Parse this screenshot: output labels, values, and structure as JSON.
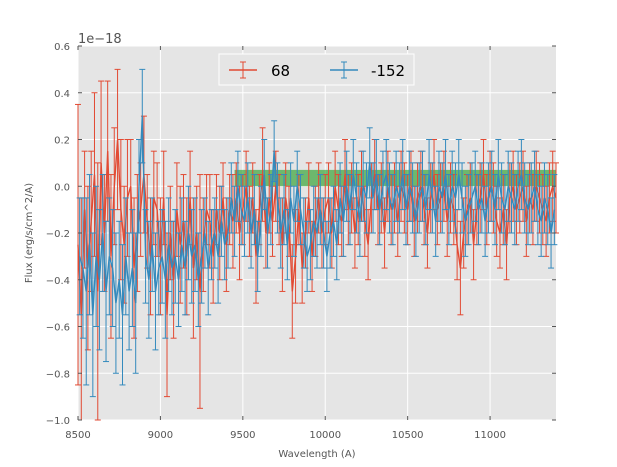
{
  "chart_data": {
    "type": "line",
    "xlabel": "Wavelength (A)",
    "ylabel": "Flux (erg/s/cm^2/A)",
    "y_offset_label": "1e−18",
    "xlim": [
      8500,
      11400
    ],
    "ylim": [
      -1.0,
      0.6
    ],
    "x_ticks": [
      8500,
      9000,
      9500,
      10000,
      10500,
      11000
    ],
    "x_tick_labels": [
      "8500",
      "9000",
      "9500",
      "10000",
      "10500",
      "11000"
    ],
    "y_ticks": [
      -1.0,
      -0.8,
      -0.6,
      -0.4,
      -0.2,
      0.0,
      0.2,
      0.4,
      0.6
    ],
    "y_tick_labels": [
      "−1.0",
      "−0.8",
      "−0.6",
      "−0.4",
      "−0.2",
      "0.0",
      "0.2",
      "0.4",
      "0.6"
    ],
    "grid": true,
    "legend_position": "top-center",
    "band": {
      "x_range": [
        9450,
        11400
      ],
      "y_range": [
        0.0,
        0.07
      ],
      "color": "#2ca02c"
    },
    "series": [
      {
        "name": "68",
        "color": "#e24a33",
        "x": [
          8500,
          8520,
          8540,
          8560,
          8580,
          8600,
          8620,
          8640,
          8660,
          8680,
          8700,
          8720,
          8740,
          8760,
          8780,
          8800,
          8820,
          8840,
          8860,
          8880,
          8900,
          8920,
          8940,
          8960,
          8980,
          9000,
          9020,
          9040,
          9060,
          9080,
          9100,
          9120,
          9140,
          9160,
          9180,
          9200,
          9220,
          9240,
          9260,
          9280,
          9300,
          9320,
          9340,
          9360,
          9380,
          9400,
          9420,
          9440,
          9460,
          9480,
          9500,
          9520,
          9540,
          9560,
          9580,
          9600,
          9620,
          9640,
          9660,
          9680,
          9700,
          9720,
          9740,
          9760,
          9780,
          9800,
          9820,
          9840,
          9860,
          9880,
          9900,
          9920,
          9940,
          9960,
          9980,
          10000,
          10020,
          10040,
          10060,
          10080,
          10100,
          10120,
          10140,
          10160,
          10180,
          10200,
          10220,
          10240,
          10260,
          10280,
          10300,
          10320,
          10340,
          10360,
          10380,
          10400,
          10420,
          10440,
          10460,
          10480,
          10500,
          10520,
          10540,
          10560,
          10580,
          10600,
          10620,
          10640,
          10660,
          10680,
          10700,
          10720,
          10740,
          10760,
          10780,
          10800,
          10820,
          10840,
          10860,
          10880,
          10900,
          10920,
          10940,
          10960,
          10980,
          11000,
          11020,
          11040,
          11060,
          11080,
          11100,
          11120,
          11140,
          11160,
          11180,
          11200,
          11220,
          11240,
          11260,
          11280,
          11300,
          11320,
          11340,
          11360,
          11380,
          11400
        ],
        "y": [
          -0.25,
          -0.55,
          -0.1,
          -0.35,
          -0.15,
          0.05,
          -0.45,
          0.1,
          -0.2,
          0.15,
          -0.3,
          0.0,
          0.2,
          -0.1,
          -0.25,
          -0.05,
          0.0,
          -0.35,
          -0.2,
          -0.1,
          0.05,
          -0.15,
          -0.3,
          -0.05,
          -0.1,
          -0.3,
          -0.05,
          -0.55,
          -0.2,
          -0.4,
          -0.1,
          -0.25,
          -0.15,
          -0.3,
          -0.05,
          -0.35,
          -0.2,
          -0.45,
          -0.25,
          -0.1,
          -0.15,
          -0.3,
          -0.1,
          -0.2,
          -0.05,
          -0.25,
          -0.1,
          -0.15,
          -0.05,
          -0.2,
          -0.1,
          0.0,
          -0.15,
          -0.05,
          -0.3,
          -0.1,
          0.05,
          -0.2,
          -0.05,
          -0.15,
          0.0,
          -0.1,
          -0.25,
          -0.05,
          -0.15,
          -0.45,
          -0.3,
          -0.1,
          -0.35,
          -0.2,
          -0.05,
          -0.3,
          -0.15,
          -0.05,
          -0.2,
          -0.1,
          -0.05,
          -0.2,
          0.0,
          -0.1,
          -0.15,
          0.05,
          -0.1,
          -0.05,
          -0.2,
          -0.1,
          0.0,
          -0.15,
          -0.25,
          -0.05,
          0.05,
          -0.1,
          -0.05,
          -0.2,
          0.0,
          -0.1,
          -0.05,
          -0.15,
          0.0,
          -0.05,
          -0.1,
          0.0,
          -0.15,
          -0.05,
          0.0,
          -0.1,
          -0.2,
          -0.05,
          0.05,
          -0.1,
          -0.05,
          0.0,
          -0.15,
          -0.05,
          -0.1,
          -0.25,
          -0.35,
          -0.2,
          -0.1,
          -0.05,
          -0.25,
          -0.1,
          -0.05,
          0.05,
          -0.1,
          0.0,
          -0.05,
          -0.15,
          -0.2,
          -0.1,
          -0.25,
          -0.05,
          0.0,
          -0.1,
          -0.05,
          0.0,
          -0.15,
          -0.05,
          -0.1,
          0.0,
          -0.05,
          -0.1,
          -0.15,
          -0.05,
          0.0,
          -0.05
        ],
        "err": [
          0.6,
          0.5,
          0.25,
          0.35,
          0.3,
          0.35,
          0.55,
          0.35,
          0.25,
          0.3,
          0.35,
          0.25,
          0.3,
          0.3,
          0.25,
          0.25,
          0.2,
          0.3,
          0.25,
          0.2,
          0.25,
          0.2,
          0.25,
          0.2,
          0.2,
          0.25,
          0.2,
          0.35,
          0.2,
          0.25,
          0.2,
          0.25,
          0.2,
          0.25,
          0.2,
          0.3,
          0.2,
          0.5,
          0.2,
          0.15,
          0.2,
          0.2,
          0.15,
          0.2,
          0.15,
          0.2,
          0.15,
          0.2,
          0.15,
          0.2,
          0.15,
          0.15,
          0.15,
          0.15,
          0.2,
          0.15,
          0.2,
          0.15,
          0.15,
          0.15,
          0.15,
          0.15,
          0.2,
          0.15,
          0.15,
          0.2,
          0.2,
          0.15,
          0.15,
          0.15,
          0.15,
          0.15,
          0.15,
          0.15,
          0.15,
          0.15,
          0.15,
          0.15,
          0.15,
          0.15,
          0.15,
          0.15,
          0.15,
          0.15,
          0.15,
          0.15,
          0.15,
          0.15,
          0.15,
          0.15,
          0.15,
          0.15,
          0.15,
          0.15,
          0.15,
          0.15,
          0.15,
          0.15,
          0.15,
          0.15,
          0.15,
          0.15,
          0.15,
          0.15,
          0.15,
          0.15,
          0.15,
          0.15,
          0.15,
          0.15,
          0.15,
          0.15,
          0.15,
          0.15,
          0.15,
          0.15,
          0.2,
          0.15,
          0.15,
          0.15,
          0.15,
          0.15,
          0.15,
          0.15,
          0.15,
          0.15,
          0.15,
          0.15,
          0.15,
          0.15,
          0.15,
          0.15,
          0.15,
          0.15,
          0.15,
          0.15,
          0.15,
          0.15,
          0.15,
          0.15,
          0.15,
          0.15,
          0.15,
          0.15,
          0.15,
          0.15
        ]
      },
      {
        "name": "-152",
        "color": "#348abd",
        "x": [
          8510,
          8530,
          8550,
          8570,
          8590,
          8610,
          8630,
          8650,
          8670,
          8690,
          8710,
          8730,
          8750,
          8770,
          8790,
          8810,
          8830,
          8850,
          8870,
          8890,
          8910,
          8930,
          8950,
          8970,
          8990,
          9010,
          9030,
          9050,
          9070,
          9090,
          9110,
          9130,
          9150,
          9170,
          9190,
          9210,
          9230,
          9250,
          9270,
          9290,
          9310,
          9330,
          9350,
          9370,
          9390,
          9410,
          9430,
          9450,
          9470,
          9490,
          9510,
          9530,
          9550,
          9570,
          9590,
          9610,
          9630,
          9650,
          9670,
          9690,
          9710,
          9730,
          9750,
          9770,
          9790,
          9810,
          9830,
          9850,
          9870,
          9890,
          9910,
          9930,
          9950,
          9970,
          9990,
          10010,
          10030,
          10050,
          10070,
          10090,
          10110,
          10130,
          10150,
          10170,
          10190,
          10210,
          10230,
          10250,
          10270,
          10290,
          10310,
          10330,
          10350,
          10370,
          10390,
          10410,
          10430,
          10450,
          10470,
          10490,
          10510,
          10530,
          10550,
          10570,
          10590,
          10610,
          10630,
          10650,
          10670,
          10690,
          10710,
          10730,
          10750,
          10770,
          10790,
          10810,
          10830,
          10850,
          10870,
          10890,
          10910,
          10930,
          10950,
          10970,
          10990,
          11010,
          11030,
          11050,
          11070,
          11090,
          11110,
          11130,
          11150,
          11170,
          11190,
          11210,
          11230,
          11250,
          11270,
          11290,
          11310,
          11330,
          11350,
          11370,
          11390
        ],
        "y": [
          -0.3,
          -0.35,
          -0.45,
          -0.25,
          -0.55,
          -0.3,
          -0.4,
          -0.2,
          -0.45,
          -0.3,
          -0.35,
          -0.5,
          -0.4,
          -0.55,
          -0.3,
          -0.45,
          -0.35,
          -0.5,
          0.0,
          0.3,
          -0.3,
          -0.4,
          -0.25,
          -0.45,
          -0.35,
          -0.3,
          -0.4,
          -0.25,
          -0.35,
          -0.3,
          -0.4,
          -0.25,
          -0.35,
          -0.2,
          -0.3,
          -0.25,
          -0.4,
          -0.3,
          -0.2,
          -0.35,
          -0.25,
          -0.2,
          -0.3,
          -0.15,
          -0.25,
          -0.2,
          -0.05,
          -0.15,
          0.0,
          -0.1,
          -0.15,
          -0.05,
          -0.2,
          -0.1,
          -0.3,
          -0.15,
          0.05,
          -0.2,
          -0.1,
          0.15,
          -0.05,
          -0.2,
          -0.1,
          -0.25,
          -0.05,
          -0.15,
          0.0,
          -0.1,
          -0.2,
          -0.3,
          -0.25,
          -0.15,
          -0.2,
          -0.1,
          -0.2,
          -0.3,
          -0.2,
          -0.15,
          -0.25,
          -0.05,
          -0.15,
          0.0,
          -0.1,
          0.05,
          -0.05,
          -0.15,
          0.0,
          -0.05,
          0.1,
          -0.05,
          0.05,
          -0.1,
          0.0,
          0.05,
          -0.05,
          -0.1,
          0.0,
          -0.05,
          0.05,
          -0.1,
          0.0,
          -0.05,
          -0.15,
          -0.05,
          0.0,
          -0.1,
          0.05,
          -0.05,
          -0.15,
          0.0,
          -0.05,
          0.05,
          -0.1,
          0.0,
          -0.05,
          0.05,
          -0.05,
          -0.15,
          -0.1,
          -0.05,
          0.0,
          -0.1,
          -0.05,
          -0.15,
          -0.05,
          0.0,
          -0.1,
          0.05,
          -0.05,
          -0.1,
          0.0,
          -0.05,
          -0.1,
          0.0,
          0.05,
          -0.05,
          -0.1,
          -0.05,
          0.0,
          -0.1,
          -0.15,
          -0.05,
          -0.1,
          -0.2,
          -0.1
        ],
        "err": [
          0.25,
          0.3,
          0.4,
          0.3,
          0.35,
          0.3,
          0.3,
          0.25,
          0.3,
          0.25,
          0.25,
          0.3,
          0.25,
          0.3,
          0.25,
          0.25,
          0.25,
          0.3,
          0.2,
          0.2,
          0.2,
          0.25,
          0.2,
          0.25,
          0.2,
          0.2,
          0.25,
          0.2,
          0.2,
          0.2,
          0.2,
          0.2,
          0.2,
          0.2,
          0.2,
          0.2,
          0.2,
          0.2,
          0.15,
          0.2,
          0.15,
          0.15,
          0.2,
          0.15,
          0.15,
          0.15,
          0.15,
          0.15,
          0.15,
          0.15,
          0.15,
          0.15,
          0.15,
          0.15,
          0.15,
          0.15,
          0.15,
          0.15,
          0.15,
          0.13,
          0.15,
          0.15,
          0.15,
          0.15,
          0.15,
          0.15,
          0.15,
          0.15,
          0.15,
          0.15,
          0.15,
          0.15,
          0.15,
          0.15,
          0.15,
          0.15,
          0.15,
          0.15,
          0.15,
          0.15,
          0.15,
          0.15,
          0.15,
          0.15,
          0.15,
          0.15,
          0.15,
          0.15,
          0.15,
          0.15,
          0.15,
          0.15,
          0.15,
          0.15,
          0.15,
          0.15,
          0.15,
          0.15,
          0.15,
          0.15,
          0.15,
          0.15,
          0.15,
          0.15,
          0.15,
          0.15,
          0.15,
          0.15,
          0.15,
          0.15,
          0.15,
          0.15,
          0.15,
          0.15,
          0.15,
          0.15,
          0.15,
          0.15,
          0.15,
          0.15,
          0.15,
          0.15,
          0.15,
          0.15,
          0.15,
          0.15,
          0.15,
          0.15,
          0.15,
          0.15,
          0.15,
          0.15,
          0.15,
          0.15,
          0.15,
          0.15,
          0.15,
          0.15,
          0.15,
          0.15,
          0.15,
          0.15,
          0.15,
          0.15,
          0.15
        ]
      }
    ]
  }
}
